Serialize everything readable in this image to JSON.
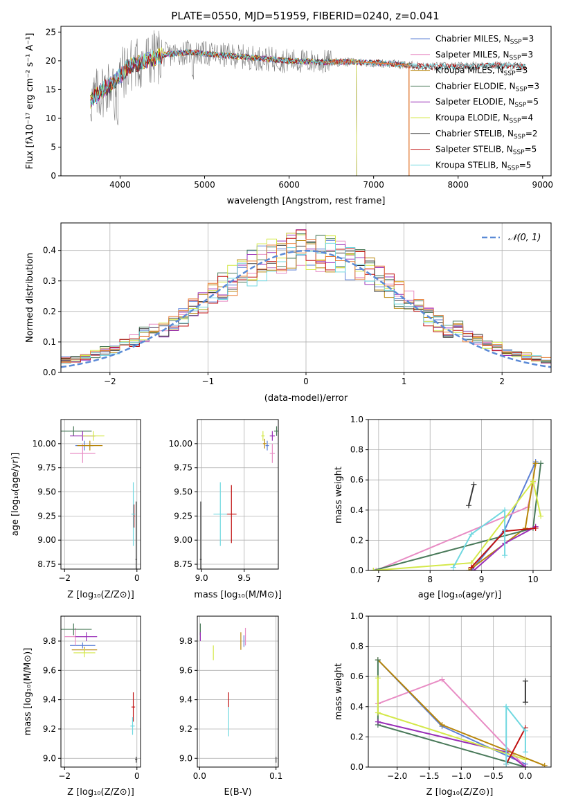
{
  "figure_title": "PLATE=0550, MJD=51959, FIBERID=0240, z=0.041",
  "colors": {
    "Chabrier MILES": "#5b7fd6",
    "Salpeter MILES": "#e88cc4",
    "Kroupa MILES": "#b8860b",
    "Chabrier ELODIE": "#4a7a5a",
    "Salpeter ELODIE": "#9a30b8",
    "Kroupa ELODIE": "#d4e84a",
    "Chabrier STELIB": "#3a3a3a",
    "Salpeter STELIB": "#c01010",
    "Kroupa STELIB": "#70d8e0",
    "orange_model": "#e8803a"
  },
  "chart_data": [
    {
      "id": "spectrum",
      "type": "line",
      "xlabel": "wavelength [Angstrom, rest frame]",
      "ylabel": "Flux [f_λ 10^-17 erg cm^-2 s^-1 A^-1]",
      "xlim": [
        3300,
        9100
      ],
      "ylim": [
        0,
        26
      ],
      "xticks": [
        4000,
        5000,
        6000,
        7000,
        8000,
        9000
      ],
      "yticks": [
        0,
        5,
        10,
        15,
        20,
        25
      ],
      "grid": false,
      "legend_position": "top-right",
      "legend": [
        "Chabrier MILES, N_SSP=3",
        "Salpeter MILES, N_SSP=3",
        "Kroupa MILES, N_SSP=3",
        "Chabrier ELODIE, N_SSP=3",
        "Salpeter ELODIE, N_SSP=5",
        "Kroupa ELODIE, N_SSP=4",
        "Chabrier STELIB, N_SSP=2",
        "Salpeter STELIB, N_SSP=5",
        "Kroupa STELIB, N_SSP=5"
      ],
      "legend_text": [
        {
          "label": "Chabrier MILES, N",
          "sub": "SSP",
          "tail": "=3"
        },
        {
          "label": "Salpeter MILES, N",
          "sub": "SSP",
          "tail": "=3"
        },
        {
          "label": "Kroupa MILES, N",
          "sub": "SSP",
          "tail": "=3"
        },
        {
          "label": "Chabrier ELODIE, N",
          "sub": "SSP",
          "tail": "=3"
        },
        {
          "label": "Salpeter ELODIE, N",
          "sub": "SSP",
          "tail": "=5"
        },
        {
          "label": "Kroupa ELODIE, N",
          "sub": "SSP",
          "tail": "=4"
        },
        {
          "label": "Chabrier STELIB, N",
          "sub": "SSP",
          "tail": "=2"
        },
        {
          "label": "Salpeter STELIB, N",
          "sub": "SSP",
          "tail": "=5"
        },
        {
          "label": "Kroupa STELIB, N",
          "sub": "SSP",
          "tail": "=5"
        }
      ],
      "continuum": {
        "x": [
          3650,
          3800,
          3950,
          4100,
          4300,
          4500,
          4800,
          5200,
          5600,
          6000,
          6400,
          6800,
          7200,
          7600,
          8000,
          8400,
          8800
        ],
        "y": [
          13,
          15,
          16.5,
          19,
          20,
          21,
          21.5,
          21,
          20.5,
          20,
          19.8,
          19.8,
          19.5,
          19,
          19,
          19.2,
          19
        ]
      },
      "model_ends": {
        "Chabrier MILES": 7420,
        "Salpeter MILES": 7420,
        "Kroupa MILES": 7420,
        "Chabrier ELODIE": 6800,
        "Salpeter ELODIE": 6800,
        "Kroupa ELODIE": 6800,
        "Chabrier STELIB": 8800,
        "Salpeter STELIB": 8800,
        "Kroupa STELIB": 8800
      }
    },
    {
      "id": "residual_histogram",
      "type": "line",
      "xlabel": "(data-model)/error",
      "ylabel": "Normed distribution",
      "xlim": [
        -2.5,
        2.5
      ],
      "ylim": [
        0,
        0.49
      ],
      "xticks": [
        -2,
        -1,
        0,
        1,
        2
      ],
      "yticks": [
        0.0,
        0.1,
        0.2,
        0.3,
        0.4
      ],
      "grid": true,
      "legend_position": "top-right",
      "legend": [
        "𝒩(0, 1)"
      ],
      "bin_width": 0.1,
      "gaussian": {
        "mean": 0,
        "sigma": 1
      }
    },
    {
      "id": "age_vs_Z",
      "type": "scatter",
      "xlabel": "Z [log10(Z/Z⊙)]",
      "ylabel": "age  [log10(age/yr)]",
      "xlim": [
        -2.1,
        0.1
      ],
      "ylim": [
        8.7,
        10.25
      ],
      "xticks": [
        -2,
        0
      ],
      "yticks": [
        8.75,
        9.0,
        9.25,
        9.5,
        9.75,
        10.0
      ],
      "grid": true,
      "points": [
        {
          "model": "Chabrier MILES",
          "x": -1.45,
          "y": 9.98,
          "xerr": 0.25,
          "yerr": 0.05
        },
        {
          "model": "Salpeter MILES",
          "x": -1.5,
          "y": 9.9,
          "xerr": 0.35,
          "yerr": 0.1
        },
        {
          "model": "Kroupa MILES",
          "x": -1.3,
          "y": 9.98,
          "xerr": 0.35,
          "yerr": 0.05
        },
        {
          "model": "Chabrier ELODIE",
          "x": -1.75,
          "y": 10.13,
          "xerr": 0.5,
          "yerr": 0.05
        },
        {
          "model": "Salpeter ELODIE",
          "x": -1.5,
          "y": 10.08,
          "xerr": 0.35,
          "yerr": 0.05
        },
        {
          "model": "Kroupa ELODIE",
          "x": -1.2,
          "y": 10.08,
          "xerr": 0.3,
          "yerr": 0.05
        },
        {
          "model": "Chabrier STELIB",
          "x": -0.02,
          "y": 8.8,
          "xerr": 0.02,
          "yerr": 0.6
        },
        {
          "model": "Salpeter STELIB",
          "x": -0.08,
          "y": 9.25,
          "xerr": 0.02,
          "yerr": 0.12
        },
        {
          "model": "Kroupa STELIB",
          "x": -0.1,
          "y": 9.27,
          "xerr": 0.05,
          "yerr": 0.33
        }
      ]
    },
    {
      "id": "age_vs_mass",
      "type": "scatter",
      "xlabel": "mass [log10(M/M⊙)]",
      "ylabel": "",
      "xlim": [
        8.95,
        9.9
      ],
      "ylim": [
        8.7,
        10.25
      ],
      "xticks": [
        9.0,
        9.5
      ],
      "yticks": [
        8.75,
        9.0,
        9.25,
        9.5,
        9.75,
        10.0
      ],
      "grid": true,
      "points": [
        {
          "model": "Chabrier MILES",
          "x": 9.77,
          "y": 9.98,
          "xerr": 0.02,
          "yerr": 0.05
        },
        {
          "model": "Salpeter MILES",
          "x": 9.83,
          "y": 9.9,
          "xerr": 0.03,
          "yerr": 0.1
        },
        {
          "model": "Kroupa MILES",
          "x": 9.74,
          "y": 10.0,
          "xerr": 0.02,
          "yerr": 0.05
        },
        {
          "model": "Chabrier ELODIE",
          "x": 9.88,
          "y": 10.13,
          "xerr": 0.03,
          "yerr": 0.05
        },
        {
          "model": "Salpeter ELODIE",
          "x": 9.83,
          "y": 10.08,
          "xerr": 0.03,
          "yerr": 0.05
        },
        {
          "model": "Kroupa ELODIE",
          "x": 9.72,
          "y": 10.08,
          "xerr": 0.02,
          "yerr": 0.05
        },
        {
          "model": "Chabrier STELIB",
          "x": 8.99,
          "y": 8.8,
          "xerr": 0.01,
          "yerr": 0.6
        },
        {
          "model": "Salpeter STELIB",
          "x": 9.35,
          "y": 9.27,
          "xerr": 0.06,
          "yerr": 0.3
        },
        {
          "model": "Kroupa STELIB",
          "x": 9.22,
          "y": 9.27,
          "xerr": 0.08,
          "yerr": 0.33
        }
      ]
    },
    {
      "id": "mass_weight_vs_age",
      "type": "line",
      "xlabel": "age  [log10(age/yr)]",
      "ylabel": "mass weight",
      "xlim": [
        6.8,
        10.35
      ],
      "ylim": [
        0,
        1
      ],
      "xticks": [
        7,
        8,
        9,
        10
      ],
      "yticks": [
        0.0,
        0.2,
        0.4,
        0.6,
        0.8,
        1.0
      ],
      "grid": true,
      "series": [
        {
          "model": "Chabrier MILES",
          "x": [
            8.8,
            9.45,
            10.05
          ],
          "y": [
            0.0,
            0.27,
            0.72
          ]
        },
        {
          "model": "Salpeter MILES",
          "x": [
            6.95,
            9.9,
            10.0
          ],
          "y": [
            0.0,
            0.42,
            0.58
          ]
        },
        {
          "model": "Kroupa MILES",
          "x": [
            8.75,
            9.85,
            10.05
          ],
          "y": [
            0.0,
            0.28,
            0.71
          ]
        },
        {
          "model": "Chabrier ELODIE",
          "x": [
            6.9,
            10.0,
            10.15
          ],
          "y": [
            0.0,
            0.28,
            0.71
          ]
        },
        {
          "model": "Salpeter ELODIE",
          "x": [
            8.85,
            9.45,
            10.05
          ],
          "y": [
            0.0,
            0.18,
            0.29
          ]
        },
        {
          "model": "Kroupa ELODIE",
          "x": [
            6.9,
            8.8,
            10.0,
            10.15
          ],
          "y": [
            0.0,
            0.05,
            0.59,
            0.36
          ]
        },
        {
          "model": "Chabrier STELIB",
          "x": [
            8.75,
            8.85
          ],
          "y": [
            0.43,
            0.57
          ]
        },
        {
          "model": "Salpeter STELIB",
          "x": [
            8.8,
            9.45,
            10.05
          ],
          "y": [
            0.02,
            0.26,
            0.28
          ]
        },
        {
          "model": "Kroupa STELIB",
          "x": [
            8.45,
            8.8,
            9.45,
            9.45
          ],
          "y": [
            0.02,
            0.24,
            0.4,
            0.1
          ]
        }
      ]
    },
    {
      "id": "mass_vs_Z",
      "type": "scatter",
      "xlabel": "Z [log10(Z/Z⊙)]",
      "ylabel": "mass [log10(M/M⊙)]",
      "xlim": [
        -2.1,
        0.1
      ],
      "ylim": [
        8.94,
        9.97
      ],
      "xticks": [
        -2,
        0
      ],
      "yticks": [
        9.0,
        9.2,
        9.4,
        9.6,
        9.8
      ],
      "grid": true,
      "points": [
        {
          "model": "Chabrier MILES",
          "x": -1.5,
          "y": 9.77,
          "xerr": 0.35,
          "yerr": 0.02
        },
        {
          "model": "Salpeter MILES",
          "x": -1.7,
          "y": 9.83,
          "xerr": 0.3,
          "yerr": 0.06
        },
        {
          "model": "Kroupa MILES",
          "x": -1.45,
          "y": 9.74,
          "xerr": 0.35,
          "yerr": 0.02
        },
        {
          "model": "Chabrier ELODIE",
          "x": -1.75,
          "y": 9.88,
          "xerr": 0.5,
          "yerr": 0.04
        },
        {
          "model": "Salpeter ELODIE",
          "x": -1.4,
          "y": 9.83,
          "xerr": 0.3,
          "yerr": 0.03
        },
        {
          "model": "Kroupa ELODIE",
          "x": -1.45,
          "y": 9.72,
          "xerr": 0.3,
          "yerr": 0.03
        },
        {
          "model": "Chabrier STELIB",
          "x": -0.02,
          "y": 8.99,
          "xerr": 0.03,
          "yerr": 0.02
        },
        {
          "model": "Salpeter STELIB",
          "x": -0.1,
          "y": 9.35,
          "xerr": 0.05,
          "yerr": 0.1
        },
        {
          "model": "Kroupa STELIB",
          "x": -0.12,
          "y": 9.22,
          "xerr": 0.06,
          "yerr": 0.06
        }
      ]
    },
    {
      "id": "mass_vs_EBV",
      "type": "scatter",
      "xlabel": "E(B-V)",
      "ylabel": "",
      "xlim": [
        -0.003,
        0.103
      ],
      "ylim": [
        8.94,
        9.97
      ],
      "xticks": [
        0.0,
        0.1
      ],
      "yticks": [
        9.0,
        9.2,
        9.4,
        9.6,
        9.8
      ],
      "grid": true,
      "points": [
        {
          "model": "Chabrier MILES",
          "x": 0.058,
          "y": 9.8,
          "xerr": 0.0,
          "yerr": 0.04
        },
        {
          "model": "Salpeter MILES",
          "x": 0.06,
          "y": 9.83,
          "xerr": 0.0,
          "yerr": 0.06
        },
        {
          "model": "Kroupa MILES",
          "x": 0.054,
          "y": 9.8,
          "xerr": 0.0,
          "yerr": 0.06
        },
        {
          "model": "Chabrier ELODIE",
          "x": 0.001,
          "y": 9.88,
          "xerr": 0.0,
          "yerr": 0.04
        },
        {
          "model": "Salpeter ELODIE",
          "x": 0.001,
          "y": 9.83,
          "xerr": 0.0,
          "yerr": 0.03
        },
        {
          "model": "Kroupa ELODIE",
          "x": 0.018,
          "y": 9.72,
          "xerr": 0.0,
          "yerr": 0.05
        },
        {
          "model": "Chabrier STELIB",
          "x": 0.1,
          "y": 8.99,
          "xerr": 0.0,
          "yerr": 0.02
        },
        {
          "model": "Salpeter STELIB",
          "x": 0.038,
          "y": 9.4,
          "xerr": 0.0,
          "yerr": 0.05
        },
        {
          "model": "Kroupa STELIB",
          "x": 0.038,
          "y": 9.25,
          "xerr": 0.0,
          "yerr": 0.1
        }
      ]
    },
    {
      "id": "mass_weight_vs_Z",
      "type": "line",
      "xlabel": "Z [log10(Z/Z⊙)]",
      "ylabel": "mass weight",
      "xlim": [
        -2.45,
        0.4
      ],
      "ylim": [
        0,
        1
      ],
      "xticks": [
        -2.0,
        -1.5,
        -1.0,
        -0.5,
        0.0
      ],
      "yticks": [
        0.0,
        0.2,
        0.4,
        0.6,
        0.8,
        1.0
      ],
      "grid": true,
      "series": [
        {
          "model": "Chabrier MILES",
          "x": [
            -2.3,
            -1.3,
            0.0
          ],
          "y": [
            0.71,
            0.27,
            0.02
          ]
        },
        {
          "model": "Salpeter MILES",
          "x": [
            -2.3,
            -1.3,
            0.0
          ],
          "y": [
            0.42,
            0.58,
            0.0
          ]
        },
        {
          "model": "Kroupa MILES",
          "x": [
            -2.3,
            -1.3,
            0.3
          ],
          "y": [
            0.71,
            0.28,
            0.01
          ]
        },
        {
          "model": "Chabrier ELODIE",
          "x": [
            -2.3,
            -2.3,
            0.0
          ],
          "y": [
            0.71,
            0.28,
            0.0
          ]
        },
        {
          "model": "Salpeter ELODIE",
          "x": [
            -2.3,
            -0.3,
            0.0
          ],
          "y": [
            0.3,
            0.1,
            0.0
          ]
        },
        {
          "model": "Kroupa ELODIE",
          "x": [
            -2.3,
            -2.3,
            0.0
          ],
          "y": [
            0.59,
            0.36,
            0.05
          ]
        },
        {
          "model": "Chabrier STELIB",
          "x": [
            0.0,
            0.0
          ],
          "y": [
            0.57,
            0.43
          ]
        },
        {
          "model": "Salpeter STELIB",
          "x": [
            -0.3,
            0.0
          ],
          "y": [
            0.02,
            0.26
          ]
        },
        {
          "model": "Kroupa STELIB",
          "x": [
            -0.3,
            -0.3,
            0.0,
            0.0
          ],
          "y": [
            0.02,
            0.4,
            0.24,
            0.1
          ]
        }
      ]
    }
  ]
}
